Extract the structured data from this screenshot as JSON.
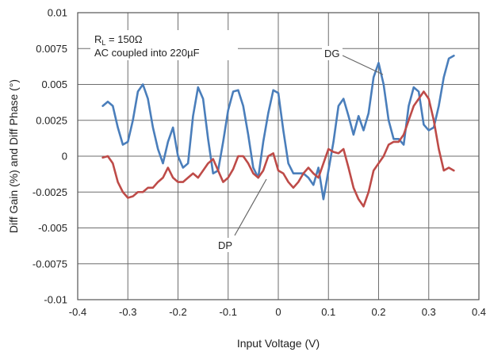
{
  "chart_data": {
    "type": "line",
    "title": "",
    "xlabel": "Input Voltage (V)",
    "ylabel": "Diff Gain (%) and Diff Phase (°)",
    "xlim": [
      -0.4,
      0.4
    ],
    "ylim": [
      -0.01,
      0.01
    ],
    "xticks": [
      "-0.4",
      "-0.3",
      "-0.2",
      "-0.1",
      "0",
      "0.1",
      "0.2",
      "0.3",
      "0.4"
    ],
    "yticks": [
      "0.01",
      "0.0075",
      "0.005",
      "0.0025",
      "0",
      "-0.0025",
      "-0.005",
      "-0.0075",
      "-0.01"
    ],
    "grid": true,
    "legend": "none",
    "annotations": {
      "condition_rl_prefix": "R",
      "condition_rl_sub": "L",
      "condition_rl_value": " = 150Ω",
      "condition_coupling": "AC coupled into 220µF",
      "dg_label": "DG",
      "dp_label": "DP"
    },
    "series": [
      {
        "name": "DG",
        "color": "#4a7ebb",
        "x": [
          -0.35,
          -0.34,
          -0.33,
          -0.32,
          -0.31,
          -0.3,
          -0.29,
          -0.28,
          -0.27,
          -0.26,
          -0.25,
          -0.24,
          -0.23,
          -0.22,
          -0.21,
          -0.2,
          -0.19,
          -0.18,
          -0.17,
          -0.16,
          -0.15,
          -0.14,
          -0.13,
          -0.12,
          -0.11,
          -0.1,
          -0.09,
          -0.08,
          -0.07,
          -0.06,
          -0.05,
          -0.04,
          -0.03,
          -0.02,
          -0.01,
          0.0,
          0.01,
          0.02,
          0.03,
          0.04,
          0.05,
          0.06,
          0.07,
          0.08,
          0.09,
          0.1,
          0.11,
          0.12,
          0.13,
          0.14,
          0.15,
          0.16,
          0.17,
          0.18,
          0.19,
          0.2,
          0.21,
          0.22,
          0.23,
          0.24,
          0.25,
          0.26,
          0.27,
          0.28,
          0.29,
          0.3,
          0.31,
          0.32,
          0.33,
          0.34,
          0.35
        ],
        "values": [
          0.0035,
          0.0038,
          0.0035,
          0.002,
          0.0008,
          0.001,
          0.0025,
          0.0045,
          0.005,
          0.004,
          0.002,
          0.0005,
          -0.0005,
          0.001,
          0.002,
          0.0,
          -0.0008,
          -0.0005,
          0.0028,
          0.0048,
          0.004,
          0.0012,
          -0.0012,
          -0.001,
          0.001,
          0.0032,
          0.0045,
          0.0046,
          0.0035,
          0.0015,
          -0.0008,
          -0.0015,
          0.001,
          0.003,
          0.0046,
          0.0044,
          0.0018,
          -0.0005,
          -0.0012,
          -0.0012,
          -0.0012,
          -0.0015,
          -0.002,
          -0.0008,
          -0.003,
          -0.001,
          0.001,
          0.0035,
          0.004,
          0.0028,
          0.0015,
          0.0028,
          0.0018,
          0.003,
          0.0055,
          0.0065,
          0.005,
          0.0025,
          0.0012,
          0.0012,
          0.0008,
          0.0035,
          0.0048,
          0.0045,
          0.0022,
          0.0018,
          0.002,
          0.0035,
          0.0055,
          0.0068,
          0.007
        ]
      },
      {
        "name": "DP",
        "color": "#be4b48",
        "x": [
          -0.35,
          -0.34,
          -0.33,
          -0.32,
          -0.31,
          -0.3,
          -0.29,
          -0.28,
          -0.27,
          -0.26,
          -0.25,
          -0.24,
          -0.23,
          -0.22,
          -0.21,
          -0.2,
          -0.19,
          -0.18,
          -0.17,
          -0.16,
          -0.15,
          -0.14,
          -0.13,
          -0.12,
          -0.11,
          -0.1,
          -0.09,
          -0.08,
          -0.07,
          -0.06,
          -0.05,
          -0.04,
          -0.03,
          -0.02,
          -0.01,
          0.0,
          0.01,
          0.02,
          0.03,
          0.04,
          0.05,
          0.06,
          0.07,
          0.08,
          0.09,
          0.1,
          0.11,
          0.12,
          0.13,
          0.14,
          0.15,
          0.16,
          0.17,
          0.18,
          0.19,
          0.2,
          0.21,
          0.22,
          0.23,
          0.24,
          0.25,
          0.26,
          0.27,
          0.28,
          0.29,
          0.3,
          0.31,
          0.32,
          0.33,
          0.34,
          0.35
        ],
        "values": [
          -0.0001,
          0.0,
          -0.0005,
          -0.0018,
          -0.0025,
          -0.0029,
          -0.0028,
          -0.0025,
          -0.0025,
          -0.0022,
          -0.0022,
          -0.0018,
          -0.0015,
          -0.0008,
          -0.0015,
          -0.0018,
          -0.0018,
          -0.0015,
          -0.0012,
          -0.0015,
          -0.001,
          -0.0005,
          -0.0002,
          -0.001,
          -0.0018,
          -0.0015,
          -0.0009,
          0.0,
          0.0,
          -0.0005,
          -0.0012,
          -0.0015,
          -0.001,
          0.0,
          0.0002,
          -0.001,
          -0.0012,
          -0.0018,
          -0.0022,
          -0.0018,
          -0.0012,
          -0.0008,
          -0.0012,
          -0.0015,
          -0.0005,
          0.0005,
          0.0003,
          0.0002,
          0.0005,
          -0.0008,
          -0.0022,
          -0.003,
          -0.0035,
          -0.0025,
          -0.001,
          -0.0005,
          0.0,
          0.0008,
          0.001,
          0.001,
          0.0015,
          0.0025,
          0.0035,
          0.004,
          0.0045,
          0.004,
          0.0025,
          0.0005,
          -0.001,
          -0.0008,
          -0.001
        ]
      }
    ]
  }
}
